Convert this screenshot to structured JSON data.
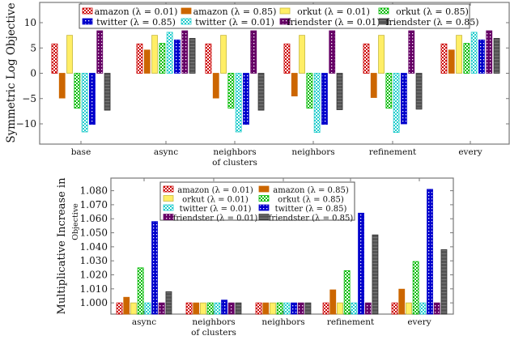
{
  "colors": {
    "amazon_001": "#cc0000",
    "amazon_085": "#cc6600",
    "orkut_001": "#ffee66",
    "orkut_085": "#00bb00",
    "twitter_001": "#22cccc",
    "twitter_085": "#0000cc",
    "friendster_001": "#660066",
    "friendster_085": "#555555"
  },
  "chart_data": [
    {
      "type": "bar",
      "title": "",
      "xlabel": "",
      "ylabel": "Symmetric Log Objective",
      "ylim": [
        -14,
        14
      ],
      "yticks": [
        10,
        5,
        0,
        -5,
        -10
      ],
      "ytick_labels": [
        "10",
        "5",
        "0",
        "−5",
        "−10"
      ],
      "grid": false,
      "legend_position": "top",
      "categories": [
        "base",
        "async",
        "neighbors of clusters",
        "neighbors",
        "refinement",
        "every"
      ],
      "series": [
        {
          "name": "amazon (λ = 0.01)",
          "key": "amazon_001",
          "pattern": "checker",
          "values": [
            5.8,
            5.8,
            5.8,
            5.8,
            5.8,
            5.8
          ]
        },
        {
          "name": "amazon (λ = 0.85)",
          "key": "amazon_085",
          "pattern": "solid",
          "values": [
            -4.9,
            4.6,
            -4.9,
            -4.5,
            -4.8,
            4.6
          ]
        },
        {
          "name": "orkut (λ = 0.01)",
          "key": "orkut_001",
          "pattern": "solid",
          "values": [
            7.5,
            7.5,
            7.5,
            7.5,
            7.5,
            7.5
          ]
        },
        {
          "name": "orkut (λ = 0.85)",
          "key": "orkut_085",
          "pattern": "checker",
          "values": [
            -6.9,
            5.9,
            -6.9,
            -6.9,
            -6.9,
            5.9
          ]
        },
        {
          "name": "twitter (λ = 0.01)",
          "key": "twitter_001",
          "pattern": "checker",
          "values": [
            -11.6,
            8.1,
            -11.6,
            -11.7,
            -11.7,
            8.1
          ]
        },
        {
          "name": "twitter (λ = 0.85)",
          "key": "twitter_085",
          "pattern": "dots",
          "values": [
            -10.1,
            6.6,
            -10.1,
            -10.1,
            -10.0,
            6.6
          ]
        },
        {
          "name": "friendster (λ = 0.01)",
          "key": "friendster_001",
          "pattern": "dots",
          "values": [
            8.4,
            8.4,
            8.4,
            8.4,
            8.4,
            8.4
          ]
        },
        {
          "name": "friendster (λ = 0.85)",
          "key": "friendster_085",
          "pattern": "stripes",
          "values": [
            -7.3,
            6.9,
            -7.3,
            -7.2,
            -7.1,
            6.9
          ]
        }
      ]
    },
    {
      "type": "bar",
      "title": "",
      "xlabel": "",
      "ylabel": "Multiplicative Increase in",
      "ylabel_sub": "Objective",
      "ylim": [
        0.992,
        1.089
      ],
      "yticks": [
        1.0,
        1.01,
        1.02,
        1.03,
        1.04,
        1.05,
        1.06,
        1.07,
        1.08
      ],
      "ytick_labels": [
        "1.000",
        "1.010",
        "1.020",
        "1.030",
        "1.040",
        "1.050",
        "1.060",
        "1.070",
        "1.080"
      ],
      "grid": false,
      "legend_position": "top-center",
      "categories": [
        "async",
        "neighbors of clusters",
        "neighbors",
        "refinement",
        "every"
      ],
      "series": [
        {
          "name": "amazon (λ = 0.01)",
          "key": "amazon_001",
          "pattern": "checker",
          "values": [
            1.0,
            1.0,
            1.0,
            1.0,
            1.0
          ]
        },
        {
          "name": "amazon (λ = 0.85)",
          "key": "amazon_085",
          "pattern": "solid",
          "values": [
            1.004,
            1.0,
            1.0,
            1.0093,
            1.0098
          ]
        },
        {
          "name": "orkut (λ = 0.01)",
          "key": "orkut_001",
          "pattern": "solid",
          "values": [
            1.0,
            1.0,
            1.0,
            1.0,
            1.0
          ]
        },
        {
          "name": "orkut (λ = 0.85)",
          "key": "orkut_085",
          "pattern": "checker",
          "values": [
            1.025,
            1.0,
            1.0,
            1.023,
            1.0295
          ]
        },
        {
          "name": "twitter (λ = 0.01)",
          "key": "twitter_001",
          "pattern": "checker",
          "values": [
            1.0,
            1.0,
            1.0,
            1.0,
            1.0
          ]
        },
        {
          "name": "twitter (λ = 0.85)",
          "key": "twitter_085",
          "pattern": "dots",
          "values": [
            1.058,
            1.002,
            1.0,
            1.064,
            1.081
          ]
        },
        {
          "name": "friendster (λ = 0.01)",
          "key": "friendster_001",
          "pattern": "dots",
          "values": [
            1.0,
            1.0,
            1.0,
            1.0,
            1.0
          ]
        },
        {
          "name": "friendster (λ = 0.85)",
          "key": "friendster_085",
          "pattern": "stripes",
          "values": [
            1.008,
            1.0,
            1.0,
            1.0485,
            1.038
          ]
        }
      ]
    }
  ]
}
